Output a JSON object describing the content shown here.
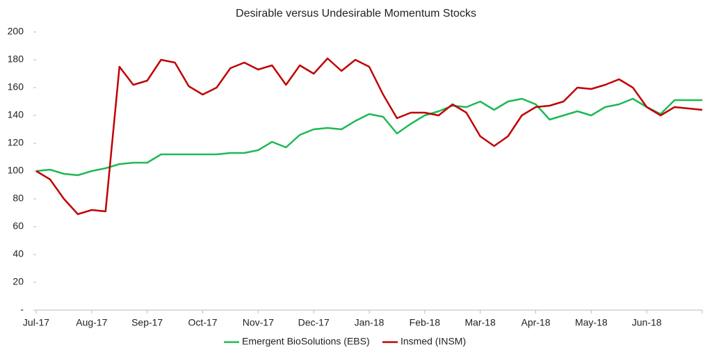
{
  "chart_data": {
    "type": "line",
    "title": "Desirable versus Undesirable Momentum Stocks",
    "categories": [
      "Jul-17",
      null,
      null,
      null,
      "Aug-17",
      null,
      null,
      null,
      "Sep-17",
      null,
      null,
      null,
      "Oct-17",
      null,
      null,
      null,
      "Nov-17",
      null,
      null,
      null,
      "Dec-17",
      null,
      null,
      null,
      "Jan-18",
      null,
      null,
      null,
      "Feb-18",
      null,
      null,
      null,
      "Mar-18",
      null,
      null,
      null,
      "Apr-18",
      null,
      null,
      null,
      "May-18",
      null,
      null,
      null,
      "Jun-18",
      null,
      null,
      null,
      null
    ],
    "series": [
      {
        "name": "Emergent BioSolutions (EBS)",
        "color": "#1db954",
        "values": [
          100,
          101,
          98,
          97,
          100,
          102,
          105,
          106,
          106,
          112,
          112,
          112,
          112,
          112,
          113,
          113,
          115,
          121,
          117,
          126,
          130,
          131,
          130,
          136,
          141,
          139,
          127,
          134,
          140,
          143,
          147,
          146,
          150,
          144,
          150,
          152,
          148,
          137,
          140,
          143,
          140,
          146,
          148,
          152,
          146,
          141,
          151,
          151,
          151
        ]
      },
      {
        "name": "Insmed (INSM)",
        "color": "#c00000",
        "values": [
          100,
          94,
          80,
          69,
          72,
          71,
          175,
          162,
          165,
          180,
          178,
          161,
          155,
          160,
          174,
          178,
          173,
          176,
          162,
          176,
          170,
          181,
          172,
          180,
          175,
          155,
          138,
          142,
          142,
          140,
          148,
          142,
          125,
          118,
          125,
          140,
          146,
          147,
          150,
          160,
          159,
          162,
          166,
          160,
          146,
          140,
          146,
          145,
          144
        ]
      }
    ],
    "ylim": [
      0,
      200
    ],
    "yticks": [
      {
        "value": 0,
        "label": "-"
      },
      20,
      40,
      60,
      80,
      100,
      120,
      140,
      160,
      180,
      200
    ]
  }
}
